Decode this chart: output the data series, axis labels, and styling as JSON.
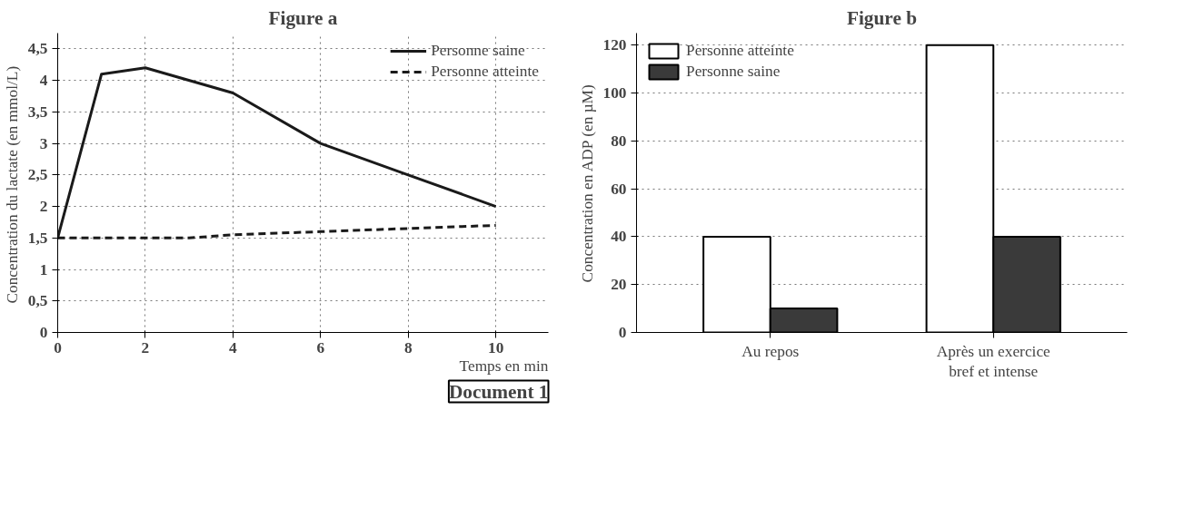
{
  "chart_data": [
    {
      "type": "line",
      "title": "Figure a",
      "xlabel": "Temps en min",
      "ylabel": "Concentration du lactate  (en mmol/L)",
      "xlim": [
        0,
        11.2
      ],
      "xticks": [
        0,
        2,
        4,
        6,
        8,
        10
      ],
      "ylim": [
        0,
        4.75
      ],
      "yticks": [
        0,
        {
          "value": 0.5,
          "label": "0,5"
        },
        1,
        {
          "value": 1.5,
          "label": "1,5"
        },
        2,
        {
          "value": 2.5,
          "label": "2,5"
        },
        3,
        {
          "value": 3.5,
          "label": "3,5"
        },
        4,
        {
          "value": 4.5,
          "label": "4,5"
        }
      ],
      "grid": true,
      "legend": "top right",
      "annotations": [
        "Document 1"
      ],
      "series": [
        {
          "name": "Personne saine",
          "color": "#1a1a1a",
          "line_style": "solid",
          "x": [
            0,
            1,
            2,
            4,
            6,
            8,
            10
          ],
          "values": [
            1.5,
            4.1,
            4.2,
            3.8,
            3.0,
            2.5,
            2.0
          ]
        },
        {
          "name": "Personne atteinte",
          "color": "#1a1a1a",
          "line_style": "dashed",
          "x": [
            0,
            2,
            3,
            4,
            6,
            8,
            10
          ],
          "values": [
            1.5,
            1.5,
            1.5,
            1.55,
            1.6,
            1.65,
            1.7
          ]
        }
      ]
    },
    {
      "type": "bar",
      "title": "Figure b",
      "ylabel": "Concentration en ADP (en µM)",
      "categories": [
        "Au repos",
        "Après un exercice bref et intense"
      ],
      "ylim": [
        0,
        125
      ],
      "yticks": [
        0,
        20,
        40,
        60,
        80,
        100,
        120
      ],
      "grid": "y",
      "legend": "top left",
      "series": [
        {
          "name": "Personne atteinte",
          "color": "#ffffff",
          "values": [
            40,
            120
          ]
        },
        {
          "name": "Personne saine",
          "color": "#3a3a3a",
          "values": [
            10,
            40
          ]
        }
      ]
    }
  ]
}
